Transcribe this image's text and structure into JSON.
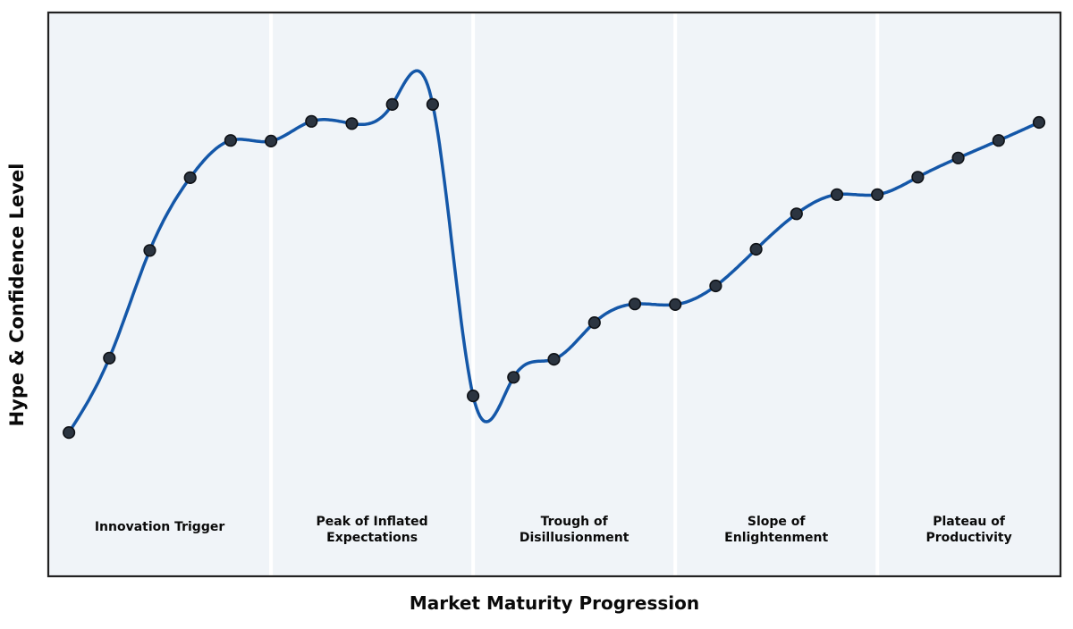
{
  "chart_data": {
    "type": "line",
    "title": "",
    "xlabel": "Market Maturity Progression",
    "ylabel": "Hype & Confidence Level",
    "x": [
      0,
      1,
      2,
      3,
      4,
      5,
      6,
      7,
      8,
      9,
      10,
      11,
      12,
      13,
      14,
      15,
      16,
      17,
      18,
      19,
      20,
      21,
      22,
      23,
      24
    ],
    "series": [
      {
        "name": "Hype & Confidence",
        "values": [
          25.5,
          38.7,
          57.8,
          70.7,
          77.3,
          77.2,
          80.7,
          80.3,
          83.7,
          83.7,
          32.0,
          35.3,
          38.5,
          45.0,
          48.3,
          48.2,
          51.5,
          58.0,
          64.3,
          67.7,
          67.7,
          70.8,
          74.2,
          77.3,
          80.5
        ]
      }
    ],
    "xlim": [
      -0.51,
      24.53
    ],
    "ylim": [
      0,
      100
    ],
    "grid": false,
    "legend": null,
    "smooth": true,
    "markers": true,
    "axis_ticks": "none",
    "phase_boundaries": [
      5,
      10,
      15,
      20
    ],
    "phases": [
      {
        "label": "Innovation Trigger",
        "lines": [
          "Innovation Trigger"
        ]
      },
      {
        "label": "Peak of Inflated Expectations",
        "lines": [
          "Peak of Inflated",
          "Expectations"
        ]
      },
      {
        "label": "Trough of Disillusionment",
        "lines": [
          "Trough of",
          "Disillusionment"
        ]
      },
      {
        "label": "Slope of Enlightenment",
        "lines": [
          "Slope of",
          "Enlightenment"
        ]
      },
      {
        "label": "Plateau of Productivity",
        "lines": [
          "Plateau of",
          "Productivity"
        ]
      }
    ],
    "colors": {
      "line": "#1457a8",
      "marker_fill": "#2b3440",
      "marker_edge": "#0e1116",
      "plot_bg": "#f0f4f8",
      "separator": "#ffffff",
      "border": "#222222",
      "text": "#0a0a0a",
      "figure_bg": "#ffffff"
    }
  }
}
